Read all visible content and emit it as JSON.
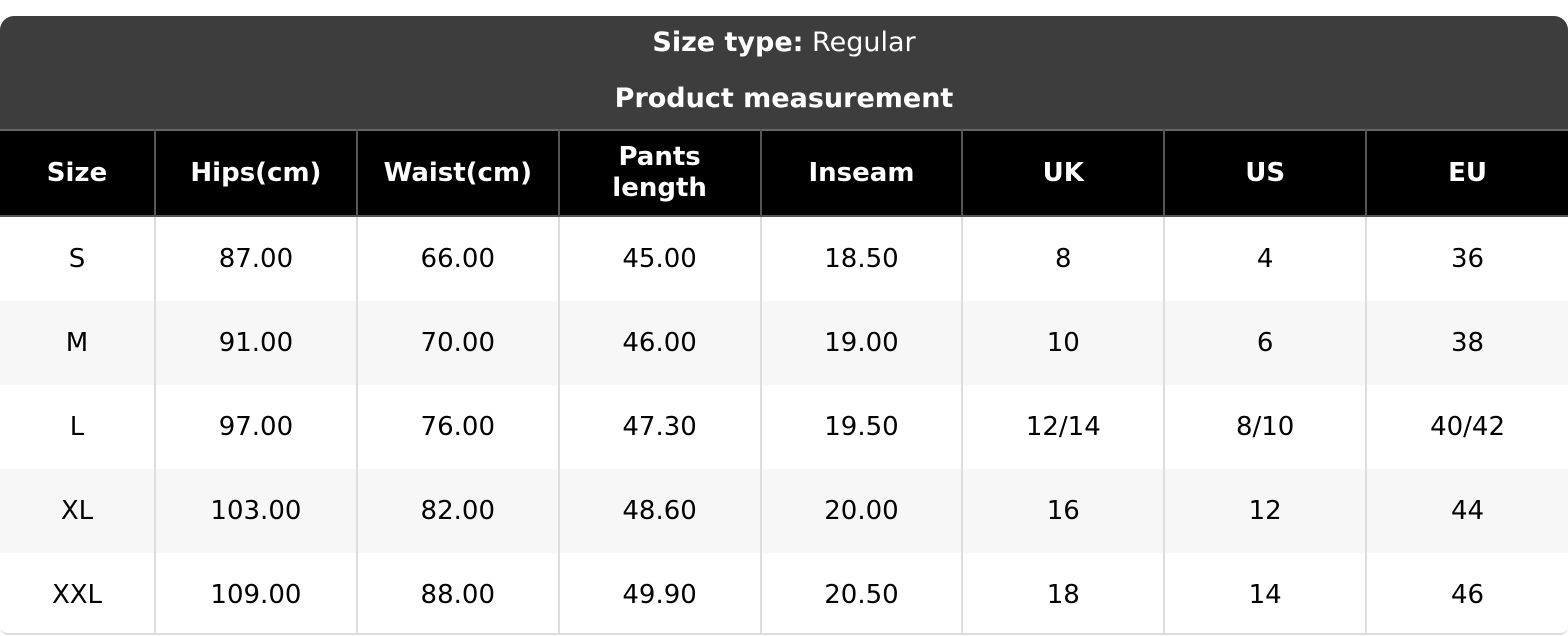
{
  "size_type": {
    "label": "Size type:",
    "value": "Regular"
  },
  "section_title": "Product measurement",
  "columns": [
    "Size",
    "Hips(cm)",
    "Waist(cm)",
    "Pants length",
    "Inseam",
    "UK",
    "US",
    "EU"
  ],
  "rows": [
    [
      "S",
      "87.00",
      "66.00",
      "45.00",
      "18.50",
      "8",
      "4",
      "36"
    ],
    [
      "M",
      "91.00",
      "70.00",
      "46.00",
      "19.00",
      "10",
      "6",
      "38"
    ],
    [
      "L",
      "97.00",
      "76.00",
      "47.30",
      "19.50",
      "12/14",
      "8/10",
      "40/42"
    ],
    [
      "XL",
      "103.00",
      "82.00",
      "48.60",
      "20.00",
      "16",
      "12",
      "44"
    ],
    [
      "XXL",
      "109.00",
      "88.00",
      "49.90",
      "20.50",
      "18",
      "14",
      "46"
    ]
  ]
}
